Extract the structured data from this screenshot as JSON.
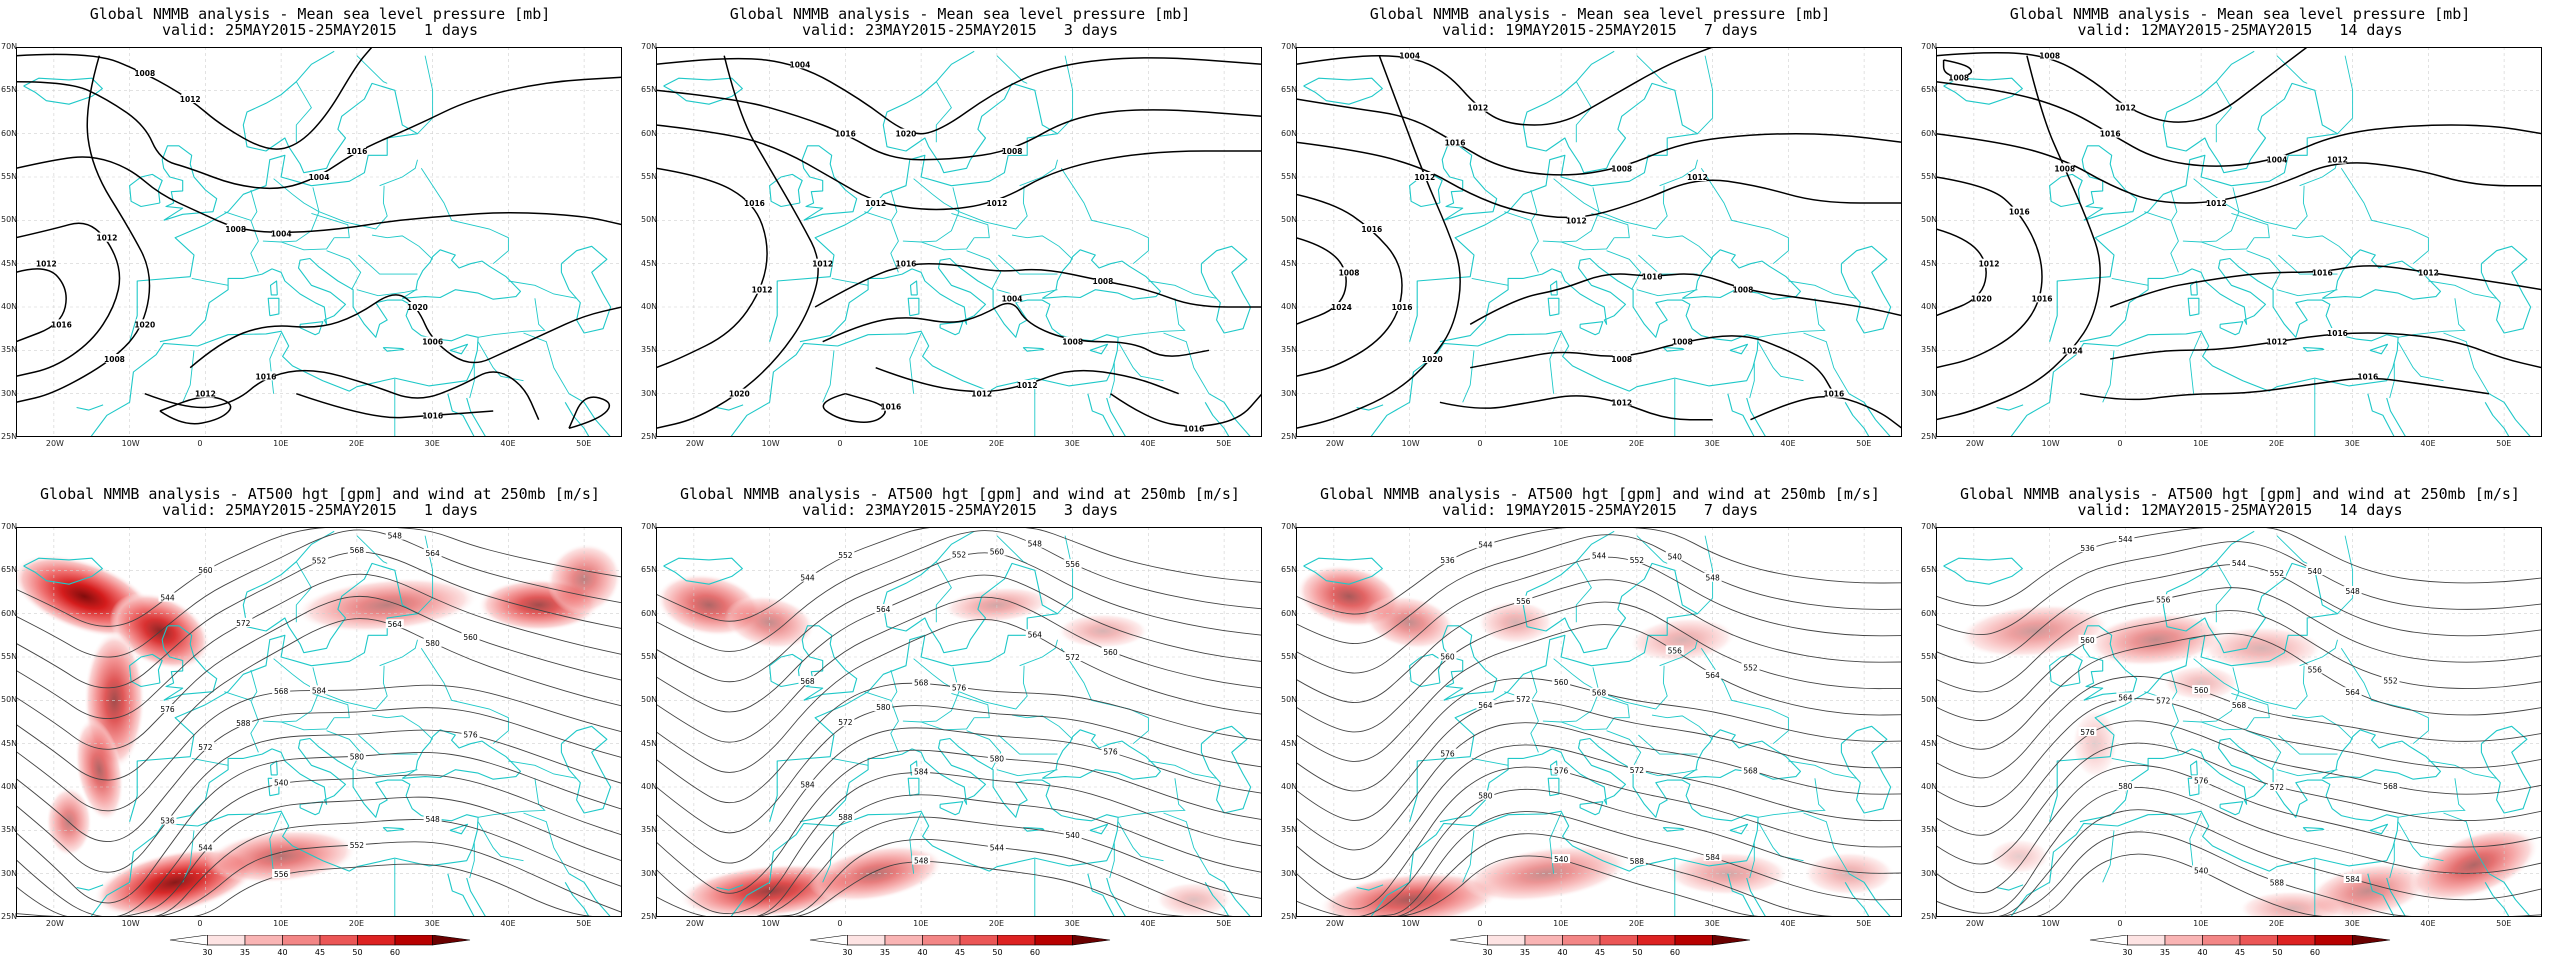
{
  "top_row": {
    "line1": "Global NMMB analysis - Mean sea level pressure [mb]",
    "panels": [
      {
        "valid": "valid: 25MAY2015-25MAY2015   1 days",
        "labels": [
          "1008",
          "1004",
          "1008",
          "1012",
          "1016",
          "1020",
          "1020",
          "1016",
          "1012",
          "1016",
          "1012",
          "1012",
          "1016",
          "1004",
          "1012",
          "1012",
          "1008",
          "1006"
        ]
      },
      {
        "valid": "valid: 23MAY2015-25MAY2015   3 days",
        "labels": [
          "1004",
          "1008",
          "1012",
          "1016",
          "1020",
          "1008",
          "1004",
          "1012",
          "1016",
          "1016",
          "1020",
          "1016",
          "1012",
          "1012",
          "1012",
          "1016",
          "1008",
          "1012"
        ]
      },
      {
        "valid": "valid: 19MAY2015-25MAY2015   7 days",
        "labels": [
          "1004",
          "1008",
          "1012",
          "1016",
          "1024",
          "1020",
          "1016",
          "1008",
          "1012",
          "1016",
          "1012",
          "1016",
          "1012",
          "1016",
          "1008",
          "1012",
          "1008",
          "1008"
        ]
      },
      {
        "valid": "valid: 12MAY2015-25MAY2015   14 days",
        "labels": [
          "1008",
          "1004",
          "1012",
          "1016",
          "1020",
          "1024",
          "1016",
          "1012",
          "1016",
          "1008",
          "1012",
          "1016",
          "1012",
          "1016",
          "1012",
          "1008",
          "1012",
          "1016"
        ]
      }
    ]
  },
  "bottom_row": {
    "line1": "Global NMMB analysis - AT500 hgt [gpm] and wind at 250mb [m/s]",
    "panels": [
      {
        "valid": "valid: 25MAY2015-25MAY2015   1 days",
        "labels": [
          "544",
          "548",
          "552",
          "556",
          "560",
          "564",
          "568",
          "572",
          "576",
          "580",
          "540",
          "544",
          "548",
          "552",
          "556",
          "560",
          "564",
          "568",
          "572",
          "576",
          "580",
          "584",
          "588",
          "536"
        ]
      },
      {
        "valid": "valid: 23MAY2015-25MAY2015   3 days",
        "labels": [
          "544",
          "548",
          "552",
          "556",
          "560",
          "564",
          "568",
          "572",
          "576",
          "580",
          "584",
          "588",
          "540",
          "544",
          "548",
          "552",
          "556",
          "560",
          "564",
          "568",
          "572",
          "576",
          "580",
          "584"
        ]
      },
      {
        "valid": "valid: 19MAY2015-25MAY2015   7 days",
        "labels": [
          "536",
          "540",
          "544",
          "548",
          "552",
          "556",
          "560",
          "564",
          "568",
          "572",
          "576",
          "580",
          "584",
          "588",
          "540",
          "544",
          "548",
          "552",
          "556",
          "560",
          "564",
          "568",
          "572",
          "576"
        ]
      },
      {
        "valid": "valid: 12MAY2015-25MAY2015   14 days",
        "labels": [
          "536",
          "540",
          "544",
          "548",
          "552",
          "556",
          "560",
          "564",
          "568",
          "572",
          "576",
          "580",
          "584",
          "588",
          "540",
          "544",
          "548",
          "552",
          "556",
          "560",
          "564",
          "568",
          "572",
          "576"
        ]
      }
    ]
  },
  "x_ticks": [
    "20W",
    "10W",
    "0",
    "10E",
    "20E",
    "30E",
    "40E",
    "50E"
  ],
  "y_ticks": [
    "70N",
    "65N",
    "60N",
    "55N",
    "50N",
    "45N",
    "40N",
    "35N",
    "30N",
    "25N"
  ],
  "colorbar": {
    "ticks": [
      "30",
      "35",
      "40",
      "45",
      "50",
      "60"
    ],
    "colors": [
      "#ffffff",
      "#fde3e3",
      "#f9b4b4",
      "#f38686",
      "#eb5656",
      "#dd2222",
      "#b80000",
      "#6a0000"
    ]
  },
  "colors": {
    "coast": "#1ec8c8",
    "contour_msl": "#000000",
    "contour_hgt": "#444444",
    "wind_low": "#f9b8b8",
    "wind_high": "#c80000"
  }
}
